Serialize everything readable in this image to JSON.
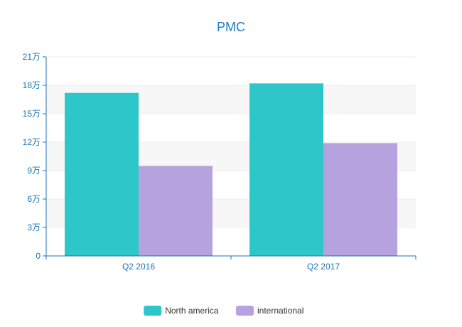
{
  "chart_data": {
    "type": "bar",
    "title": "PMC",
    "categories": [
      "Q2 2016",
      "Q2 2017"
    ],
    "series": [
      {
        "name": "North america",
        "values": [
          172000,
          182000
        ],
        "color": "#2ec7c9"
      },
      {
        "name": "international",
        "values": [
          95000,
          119000
        ],
        "color": "#b6a2de"
      }
    ],
    "ylim": [
      0,
      210000
    ],
    "yticks": [
      0,
      30000,
      60000,
      90000,
      120000,
      150000,
      180000,
      210000
    ],
    "ytick_labels": [
      "0",
      "3万",
      "6万",
      "9万",
      "12万",
      "15万",
      "18万",
      "21万"
    ],
    "xlabel": "",
    "ylabel": "",
    "grid": true,
    "legend_position": "bottom"
  },
  "colors": {
    "axis": "#1a73b8",
    "title": "#1a7fc1",
    "grid_band": "#f7f7f7",
    "grid_line": "#eeeeee"
  }
}
